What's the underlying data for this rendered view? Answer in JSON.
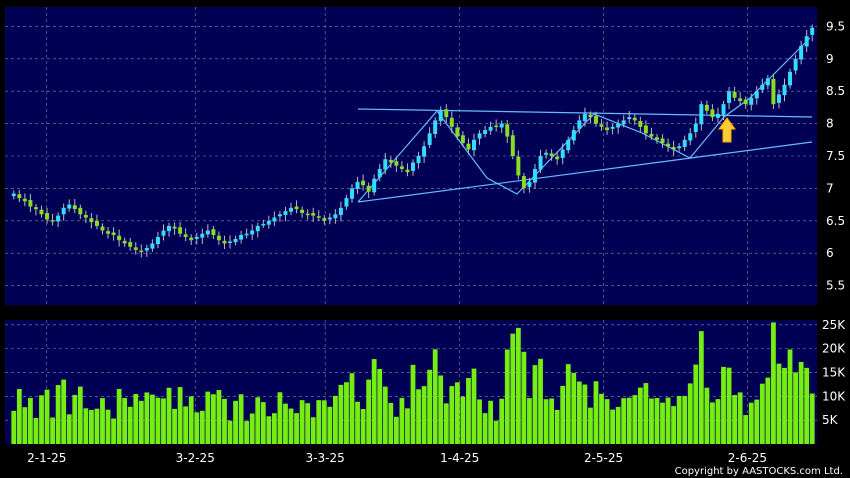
{
  "chart_data": {
    "type": "candlestick_volume",
    "title": "",
    "copyright": "Copyright by AASTOCKS.com Ltd.",
    "price_axis": {
      "ylim": [
        5.2,
        9.8
      ],
      "ticks": [
        5.5,
        6,
        6.5,
        7,
        7.5,
        8,
        8.5,
        9,
        9.5
      ],
      "tick_labels": [
        "5.5",
        "6",
        "6.5",
        "7",
        "7.5",
        "8",
        "8.5",
        "9",
        "9.5"
      ],
      "position": "right"
    },
    "volume_axis": {
      "ylim": [
        0,
        26000
      ],
      "ticks": [
        5000,
        10000,
        15000,
        20000,
        25000
      ],
      "tick_labels": [
        "5K",
        "10K",
        "15K",
        "20K",
        "25K"
      ],
      "position": "right"
    },
    "x_axis": {
      "start_date": "2024-12-24",
      "end_date": "2025-06-17",
      "ticks": [
        "2025-01-02",
        "2025-02-03",
        "2025-03-03",
        "2025-04-01",
        "2025-05-02",
        "2025-06-02"
      ],
      "tick_labels": [
        "2-1-25",
        "3-2-25",
        "3-3-25",
        "1-4-25",
        "2-5-25",
        "2-6-25"
      ]
    },
    "grid": true,
    "colors": {
      "background": "#000000",
      "panel": "#000055",
      "grid": "#8888aa",
      "up": "#33ddff",
      "down": "#88dd22",
      "volume": "#77ee11",
      "trendline": "#66bbff",
      "arrow": "#ffcc33",
      "text": "#ffffff"
    },
    "close": [
      6.92,
      6.85,
      6.8,
      6.72,
      6.68,
      6.6,
      6.52,
      6.5,
      6.58,
      6.7,
      6.75,
      6.68,
      6.6,
      6.55,
      6.48,
      6.42,
      6.35,
      6.3,
      6.28,
      6.2,
      6.15,
      6.1,
      6.05,
      6.02,
      6.08,
      6.15,
      6.25,
      6.35,
      6.42,
      6.38,
      6.3,
      6.25,
      6.2,
      6.25,
      6.3,
      6.35,
      6.28,
      6.2,
      6.15,
      6.18,
      6.22,
      6.28,
      6.3,
      6.35,
      6.42,
      6.45,
      6.5,
      6.55,
      6.6,
      6.65,
      6.7,
      6.68,
      6.62,
      6.6,
      6.58,
      6.55,
      6.5,
      6.55,
      6.6,
      6.7,
      6.85,
      7.0,
      7.1,
      7.05,
      6.95,
      7.15,
      7.3,
      7.45,
      7.4,
      7.35,
      7.3,
      7.25,
      7.4,
      7.5,
      7.65,
      7.85,
      8.05,
      8.2,
      8.1,
      7.95,
      7.8,
      7.7,
      7.6,
      7.75,
      7.85,
      7.9,
      7.95,
      7.95,
      8.0,
      7.8,
      7.5,
      7.2,
      7.0,
      7.1,
      7.3,
      7.5,
      7.55,
      7.5,
      7.45,
      7.6,
      7.75,
      7.9,
      8.05,
      8.15,
      8.1,
      8.0,
      7.95,
      7.9,
      7.95,
      8.0,
      8.05,
      8.1,
      8.05,
      7.95,
      7.85,
      7.8,
      7.75,
      7.7,
      7.65,
      7.6,
      7.65,
      7.75,
      7.85,
      8.0,
      8.3,
      8.2,
      8.1,
      8.15,
      8.3,
      8.5,
      8.4,
      8.35,
      8.3,
      8.4,
      8.5,
      8.6,
      8.7,
      8.3,
      8.45,
      8.6,
      8.8,
      9.0,
      9.2,
      9.35,
      9.48
    ]
  }
}
